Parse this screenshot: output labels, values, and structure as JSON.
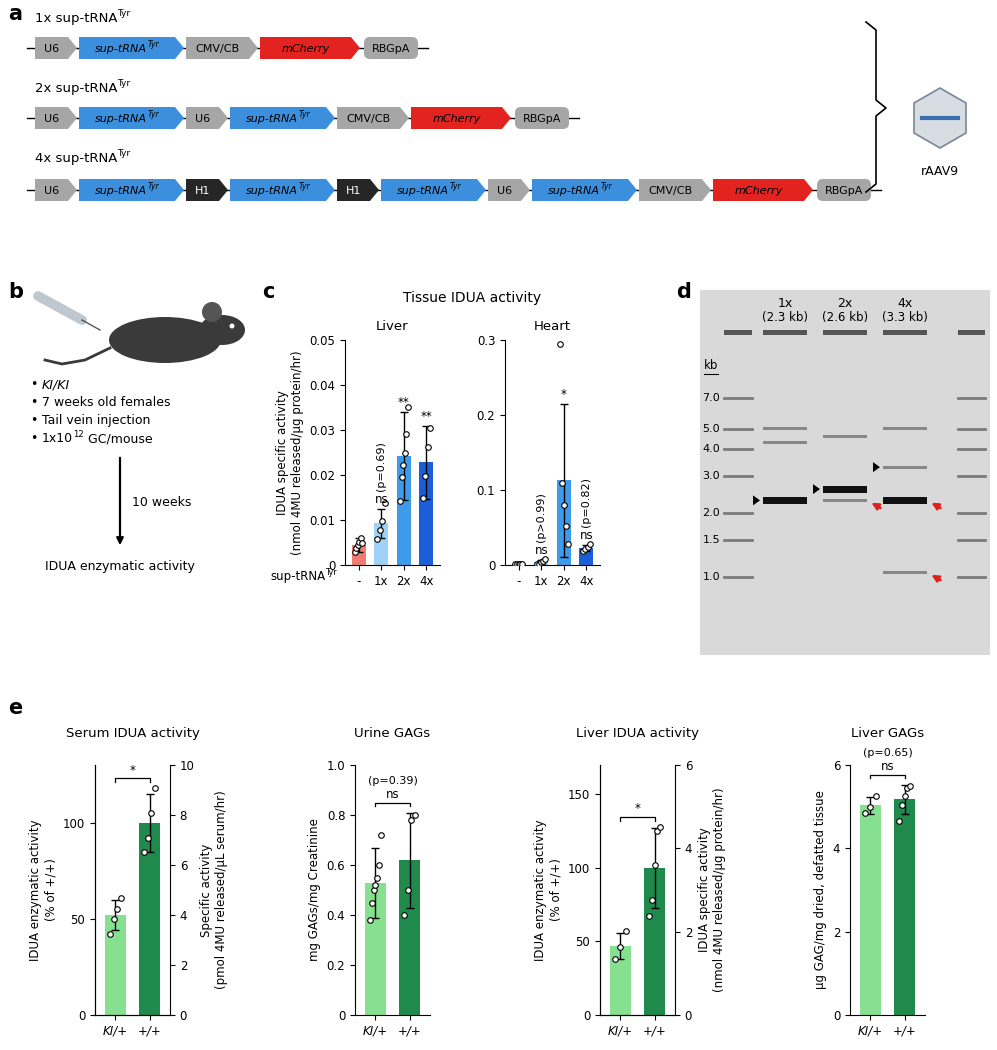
{
  "panel_labels": [
    "a",
    "b",
    "c",
    "d",
    "e"
  ],
  "panel_a": {
    "rows": [
      {
        "label": [
          {
            "t": "1x sup-tRNA"
          },
          {
            "t": "Tyr",
            "sup": true
          }
        ],
        "elements": [
          {
            "kind": "u6",
            "label": [
              {
                "t": "U6"
              }
            ]
          },
          {
            "kind": "trna",
            "label": [
              {
                "t": "sup-tRNA"
              },
              {
                "t": "Tyr",
                "sup": true
              }
            ]
          },
          {
            "kind": "cmv",
            "label": [
              {
                "t": "CMV/CB"
              }
            ]
          },
          {
            "kind": "reporter",
            "label": [
              {
                "t": "mCherry"
              }
            ]
          },
          {
            "kind": "polya",
            "label": [
              {
                "t": "RBGpA"
              }
            ]
          }
        ]
      },
      {
        "label": [
          {
            "t": "2x sup-tRNA"
          },
          {
            "t": "Tyr",
            "sup": true
          }
        ],
        "elements": [
          {
            "kind": "u6",
            "label": [
              {
                "t": "U6"
              }
            ]
          },
          {
            "kind": "trna",
            "label": [
              {
                "t": "sup-tRNA"
              },
              {
                "t": "Tyr",
                "sup": true
              }
            ]
          },
          {
            "kind": "u6",
            "label": [
              {
                "t": "U6"
              }
            ]
          },
          {
            "kind": "trna",
            "label": [
              {
                "t": "sup-tRNA"
              },
              {
                "t": "Tyr",
                "sup": true
              }
            ]
          },
          {
            "kind": "cmv",
            "label": [
              {
                "t": "CMV/CB"
              }
            ]
          },
          {
            "kind": "reporter",
            "label": [
              {
                "t": "mCherry"
              }
            ]
          },
          {
            "kind": "polya",
            "label": [
              {
                "t": "RBGpA"
              }
            ]
          }
        ]
      },
      {
        "label": [
          {
            "t": "4x sup-tRNA"
          },
          {
            "t": "Tyr",
            "sup": true
          }
        ],
        "elements": [
          {
            "kind": "u6",
            "label": [
              {
                "t": "U6"
              }
            ]
          },
          {
            "kind": "trna",
            "label": [
              {
                "t": "sup-tRNA"
              },
              {
                "t": "Tyr",
                "sup": true
              }
            ]
          },
          {
            "kind": "h1",
            "label": [
              {
                "t": "H1"
              }
            ]
          },
          {
            "kind": "trna",
            "label": [
              {
                "t": "sup-tRNA"
              },
              {
                "t": "Tyr",
                "sup": true
              }
            ]
          },
          {
            "kind": "h1",
            "label": [
              {
                "t": "H1"
              }
            ]
          },
          {
            "kind": "trna",
            "label": [
              {
                "t": "sup-tRNA"
              },
              {
                "t": "Tyr",
                "sup": true
              }
            ]
          },
          {
            "kind": "u6",
            "label": [
              {
                "t": "U6"
              }
            ]
          },
          {
            "kind": "trna",
            "label": [
              {
                "t": "sup-tRNA"
              },
              {
                "t": "Tyr",
                "sup": true
              }
            ]
          },
          {
            "kind": "cmv",
            "label": [
              {
                "t": "CMV/CB"
              }
            ]
          },
          {
            "kind": "reporter",
            "label": [
              {
                "t": "mCherry"
              }
            ]
          },
          {
            "kind": "polya",
            "label": [
              {
                "t": "RBGpA"
              }
            ]
          }
        ]
      }
    ],
    "vector": "rAAV9"
  },
  "panel_b": {
    "bullet": "•",
    "items": [
      [
        {
          "t": "KI/KI",
          "i": true
        }
      ],
      [
        {
          "t": "7 weeks old females"
        }
      ],
      [
        {
          "t": "Tail vein injection"
        }
      ],
      [
        {
          "t": "1x10"
        },
        {
          "t": "12",
          "sup": true
        },
        {
          "t": " GC/mouse"
        }
      ]
    ],
    "interval": "10 weeks",
    "readout": "IDUA enzymatic activity"
  },
  "panel_c": {
    "title": "Tissue IDUA activity",
    "xlabel": [
      {
        "t": "sup-tRNA"
      },
      {
        "t": "Tyr",
        "sup": true
      }
    ]
  },
  "panel_d": {
    "unit": "kb",
    "ladder": [
      7.0,
      5.0,
      4.0,
      3.0,
      2.0,
      1.5,
      1.0
    ],
    "lanes": [
      {
        "label": "1x",
        "size": "(2.3 kb)",
        "bands": [
          {
            "kb": 2.3,
            "arrow": "expected",
            "strong": true
          },
          {
            "kb": 4.3
          },
          {
            "kb": 5.0
          }
        ]
      },
      {
        "label": "2x",
        "size": "(2.6 kb)",
        "bands": [
          {
            "kb": 2.6,
            "arrow": "expected",
            "strong": true
          },
          {
            "kb": 2.3,
            "arrow": "truncated"
          },
          {
            "kb": 4.6
          }
        ]
      },
      {
        "label": "4x",
        "size": "(3.3 kb)",
        "bands": [
          {
            "kb": 3.3,
            "arrow": "expected"
          },
          {
            "kb": 2.3,
            "arrow": "truncated",
            "strong": true
          },
          {
            "kb": 1.05,
            "arrow": "truncated"
          },
          {
            "kb": 5.0
          }
        ]
      }
    ]
  },
  "chart_data": [
    {
      "type": "bar",
      "title": "Liver",
      "ylabel": "IDUA specific activity\n(nmol 4MU released/µg protein/hr)",
      "categories": [
        "-",
        "1x",
        "2x",
        "4x"
      ],
      "values": [
        0.0045,
        0.0093,
        0.0242,
        0.0228
      ],
      "errors": [
        0.0015,
        0.0032,
        0.0098,
        0.0082
      ],
      "points": [
        [
          0.0028,
          0.0038,
          0.0045,
          0.0052,
          0.006,
          0.0048
        ],
        [
          0.0058,
          0.0078,
          0.0098,
          0.0138
        ],
        [
          0.0142,
          0.0195,
          0.0222,
          0.0248,
          0.0292,
          0.0352
        ],
        [
          0.0148,
          0.0198,
          0.0262,
          0.0305
        ]
      ],
      "colors": [
        "#f07b72",
        "#9fd2f5",
        "#3d9be9",
        "#1a5fd8"
      ],
      "ylim": [
        0,
        0.05
      ],
      "yticks": [
        0,
        0.01,
        0.02,
        0.03,
        0.04,
        0.05
      ],
      "annotations": [
        null,
        [
          "ns",
          "(p=0.69)"
        ],
        [
          "**"
        ],
        [
          "**"
        ]
      ]
    },
    {
      "type": "bar",
      "title": "Heart",
      "categories": [
        "-",
        "1x",
        "2x",
        "4x"
      ],
      "values": [
        0.0015,
        0.004,
        0.113,
        0.023
      ],
      "errors": [
        0.0008,
        0.003,
        0.102,
        0.004
      ],
      "points": [
        [
          0.0008,
          0.0012,
          0.0015,
          0.002,
          0.0018
        ],
        [
          0.001,
          0.002,
          0.004,
          0.005,
          0.008
        ],
        [
          0.295,
          0.11,
          0.08,
          0.052,
          0.028
        ],
        [
          0.019,
          0.021,
          0.024,
          0.028
        ]
      ],
      "colors": [
        "#f07b72",
        "#9fd2f5",
        "#3d9be9",
        "#1a5fd8"
      ],
      "ylim": [
        0,
        0.3
      ],
      "yticks": [
        0,
        0.1,
        0.2,
        0.3
      ],
      "annotations": [
        null,
        [
          "ns",
          "(p>0.99)"
        ],
        [
          "*"
        ],
        [
          "ns",
          "(p=0.82)"
        ]
      ]
    },
    {
      "type": "bar",
      "title": "Serum IDUA activity",
      "ylabel": "IDUA enzymatic activity\n(% of +/+)",
      "y2label": "Specific activity\n(pmol 4MU released/µL serum/hr)",
      "categories": [
        "KI/+",
        "+/+"
      ],
      "values": [
        52,
        100
      ],
      "errors": [
        8,
        15
      ],
      "points": [
        [
          42,
          50,
          55,
          61
        ],
        [
          85,
          92,
          105,
          118
        ]
      ],
      "colors": [
        "#86e08f",
        "#1f8a4c"
      ],
      "ylim": [
        0,
        130
      ],
      "yticks": [
        0,
        50,
        100
      ],
      "y2lim": [
        0,
        10
      ],
      "y2ticks": [
        0,
        2,
        4,
        6,
        8,
        10
      ],
      "comparison": [
        "*"
      ]
    },
    {
      "type": "bar",
      "title": "Urine GAGs",
      "ylabel": "mg GAGs/mg Creatinine",
      "categories": [
        "KI/+",
        "+/+"
      ],
      "values": [
        0.53,
        0.62
      ],
      "errors": [
        0.14,
        0.19
      ],
      "points": [
        [
          0.38,
          0.45,
          0.5,
          0.52,
          0.55,
          0.6,
          0.72
        ],
        [
          0.4,
          0.5,
          0.78,
          0.8
        ]
      ],
      "colors": [
        "#86e08f",
        "#1f8a4c"
      ],
      "ylim": [
        0,
        1.0
      ],
      "yticks": [
        0,
        0.2,
        0.4,
        0.6,
        0.8,
        1.0
      ],
      "comparison": [
        "ns",
        "(p=0.39)"
      ]
    },
    {
      "type": "bar",
      "title": "Liver IDUA activity",
      "ylabel": "IDUA enzymatic activity\n(% of +/+)",
      "y2label": "IDUA specific activity\n(nmol 4MU released/µg protein/hr)",
      "categories": [
        "KI/+",
        "+/+"
      ],
      "values": [
        47,
        100
      ],
      "errors": [
        9,
        27
      ],
      "points": [
        [
          38,
          46,
          57
        ],
        [
          67,
          78,
          102,
          125,
          128
        ]
      ],
      "colors": [
        "#86e08f",
        "#1f8a4c"
      ],
      "ylim": [
        0,
        170
      ],
      "yticks": [
        0,
        50,
        100,
        150
      ],
      "y2lim": [
        0,
        6
      ],
      "y2ticks": [
        0,
        2,
        4,
        6
      ],
      "comparison": [
        "*"
      ]
    },
    {
      "type": "bar",
      "title": "Liver GAGs",
      "ylabel": "µg GAG/mg dried, defatted tissue",
      "categories": [
        "KI/+",
        "+/+"
      ],
      "values": [
        5.03,
        5.18
      ],
      "errors": [
        0.2,
        0.35
      ],
      "points": [
        [
          4.85,
          5.0,
          5.25
        ],
        [
          4.65,
          5.05,
          5.25,
          5.45,
          5.5
        ]
      ],
      "colors": [
        "#86e08f",
        "#1f8a4c"
      ],
      "ylim": [
        0,
        6
      ],
      "yticks": [
        0,
        2,
        4,
        6
      ],
      "comparison": [
        "ns",
        "(p=0.65)"
      ]
    }
  ]
}
